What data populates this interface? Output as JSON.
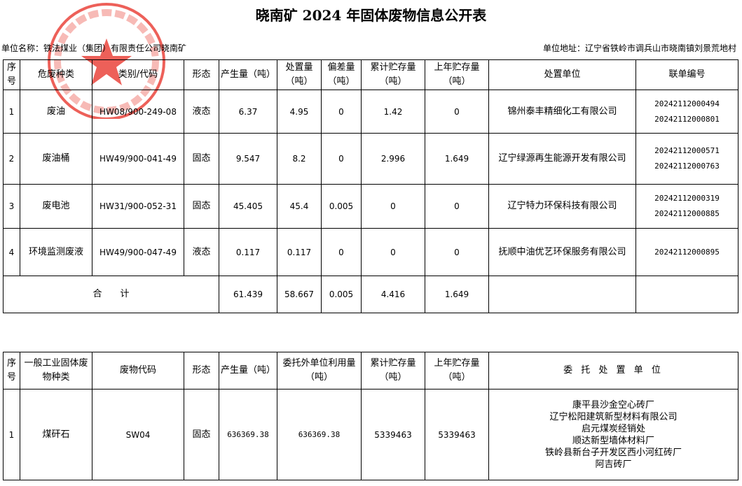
{
  "title": "晓南矿 2024 年固体废物信息公开表",
  "unit_name": "单位名称：铁法煤业（集团）有限责任公司晓南矿",
  "unit_address": "单位地址：辽宁省铁岭市调兵山市晓南镇刘景荒地村",
  "stamp": {
    "text": "铁法煤业(集团)有限责任公司 晓南矿",
    "color": "#e8382f"
  },
  "hazardous": {
    "headers": [
      "序号",
      "危废种类",
      "类别/代码",
      "形态",
      "产生量（吨）",
      "处置量（吨）",
      "偏差量（吨）",
      "累计贮存量（吨）",
      "上年贮存量（吨）",
      "处置单位",
      "联单编号"
    ],
    "rows": [
      {
        "no": "1",
        "type": "废油",
        "code": "HW08/900-249-08",
        "state": "液态",
        "produced": "6.37",
        "disposed": "4.95",
        "deviation": "0",
        "stored": "1.42",
        "last_year": "0",
        "disposer": "锦州泰丰精细化工有限公司",
        "forms": [
          "20242112000494",
          "20242112000801"
        ]
      },
      {
        "no": "2",
        "type": "废油桶",
        "code": "HW49/900-041-49",
        "state": "固态",
        "produced": "9.547",
        "disposed": "8.2",
        "deviation": "0",
        "stored": "2.996",
        "last_year": "1.649",
        "disposer": "辽宁绿源再生能源开发有限公司",
        "forms": [
          "20242112000571",
          "20242112000763"
        ]
      },
      {
        "no": "3",
        "type": "废电池",
        "code": "HW31/900-052-31",
        "state": "固态",
        "produced": "45.405",
        "disposed": "45.4",
        "deviation": "0.005",
        "stored": "0",
        "last_year": "0",
        "disposer": "辽宁特力环保科技有限公司",
        "forms": [
          "20242112000319",
          "20242112000885"
        ]
      },
      {
        "no": "4",
        "type": "环境监测废液",
        "code": "HW49/900-047-49",
        "state": "液态",
        "produced": "0.117",
        "disposed": "0.117",
        "deviation": "0",
        "stored": "0",
        "last_year": "0",
        "disposer": "抚顺中油优艺环保服务有限公司",
        "forms": [
          "20242112000895"
        ]
      }
    ],
    "total": {
      "label": "合　　计",
      "produced": "61.439",
      "disposed": "58.667",
      "deviation": "0.005",
      "stored": "4.416",
      "last_year": "1.649"
    }
  },
  "general": {
    "headers": [
      "序号",
      "一般工业固体废物种类",
      "废物代码",
      "形态",
      "产生量（吨）",
      "委托外单位利用量（吨）",
      "累计贮存量（吨）",
      "上年贮存量（吨）",
      "委 托 处 置 单 位"
    ],
    "rows": [
      {
        "no": "1",
        "type": "煤矸石",
        "code": "SW04",
        "state": "固态",
        "produced": "636369.38",
        "utilized": "636369.38",
        "stored": "5339463",
        "last_year": "5339463",
        "disposers": [
          "康平县沙金空心砖厂",
          "辽宁松阳建筑新型材料有限公司",
          "启元煤炭经销处",
          "顺达新型墙体材料厂",
          "铁岭县新台子开发区西小河红砖厂",
          "阿吉砖厂"
        ]
      }
    ]
  }
}
